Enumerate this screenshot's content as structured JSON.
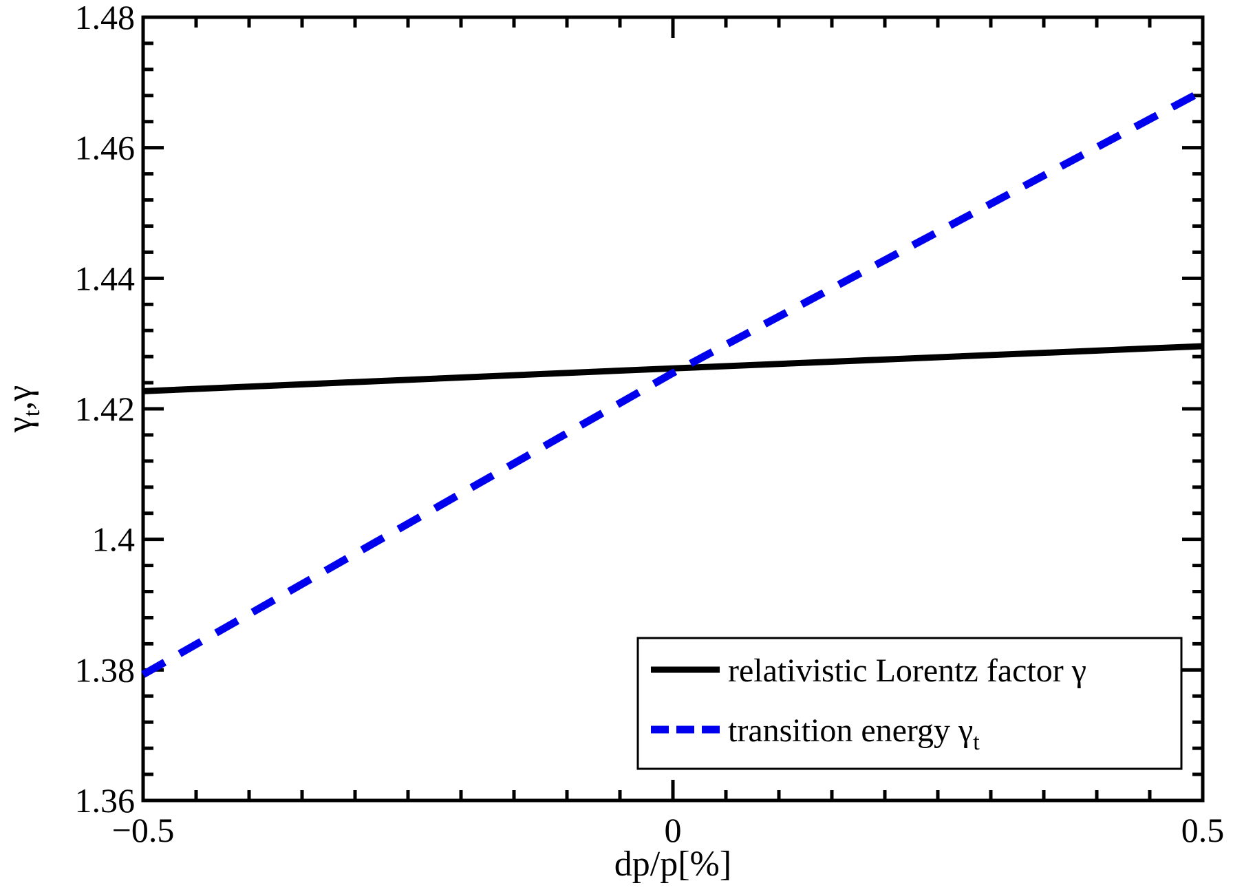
{
  "figure": {
    "background": "#ffffff",
    "frame_color": "#000000"
  },
  "chart_data": {
    "type": "line",
    "title": "",
    "xlabel": "dp/p[%]",
    "ylabel_parts": {
      "main": "γ",
      "sub": "t",
      "rest": ",γ"
    },
    "xlim": [
      -0.5,
      0.5
    ],
    "ylim": [
      1.36,
      1.48
    ],
    "grid": false,
    "legend_position": "lower right",
    "x_major_ticks": [
      -0.5,
      0,
      0.5
    ],
    "x_major_labels": [
      "−0.5",
      "0",
      "0.5"
    ],
    "x_minor_step": 0.05,
    "y_major_ticks": [
      1.36,
      1.38,
      1.4,
      1.42,
      1.44,
      1.46,
      1.48
    ],
    "y_major_labels": [
      "1.36",
      "1.38",
      "1.4",
      "1.42",
      "1.44",
      "1.46",
      "1.48"
    ],
    "y_minor_step": 0.004,
    "series": [
      {
        "name": "relativistic Lorentz factor γ",
        "name_main": "relativistic Lorentz factor γ",
        "name_sub": "",
        "color": "#000000",
        "style": "solid",
        "x": [
          -0.5,
          0,
          0.5
        ],
        "y": [
          1.4227,
          1.4262,
          1.4296
        ]
      },
      {
        "name": "transition energy γt",
        "name_main": "transition energy γ",
        "name_sub": "t",
        "color": "#0000EE",
        "style": "dashed",
        "x": [
          -0.5,
          0,
          0.5
        ],
        "y": [
          1.3793,
          1.4255,
          1.4687
        ]
      }
    ]
  }
}
